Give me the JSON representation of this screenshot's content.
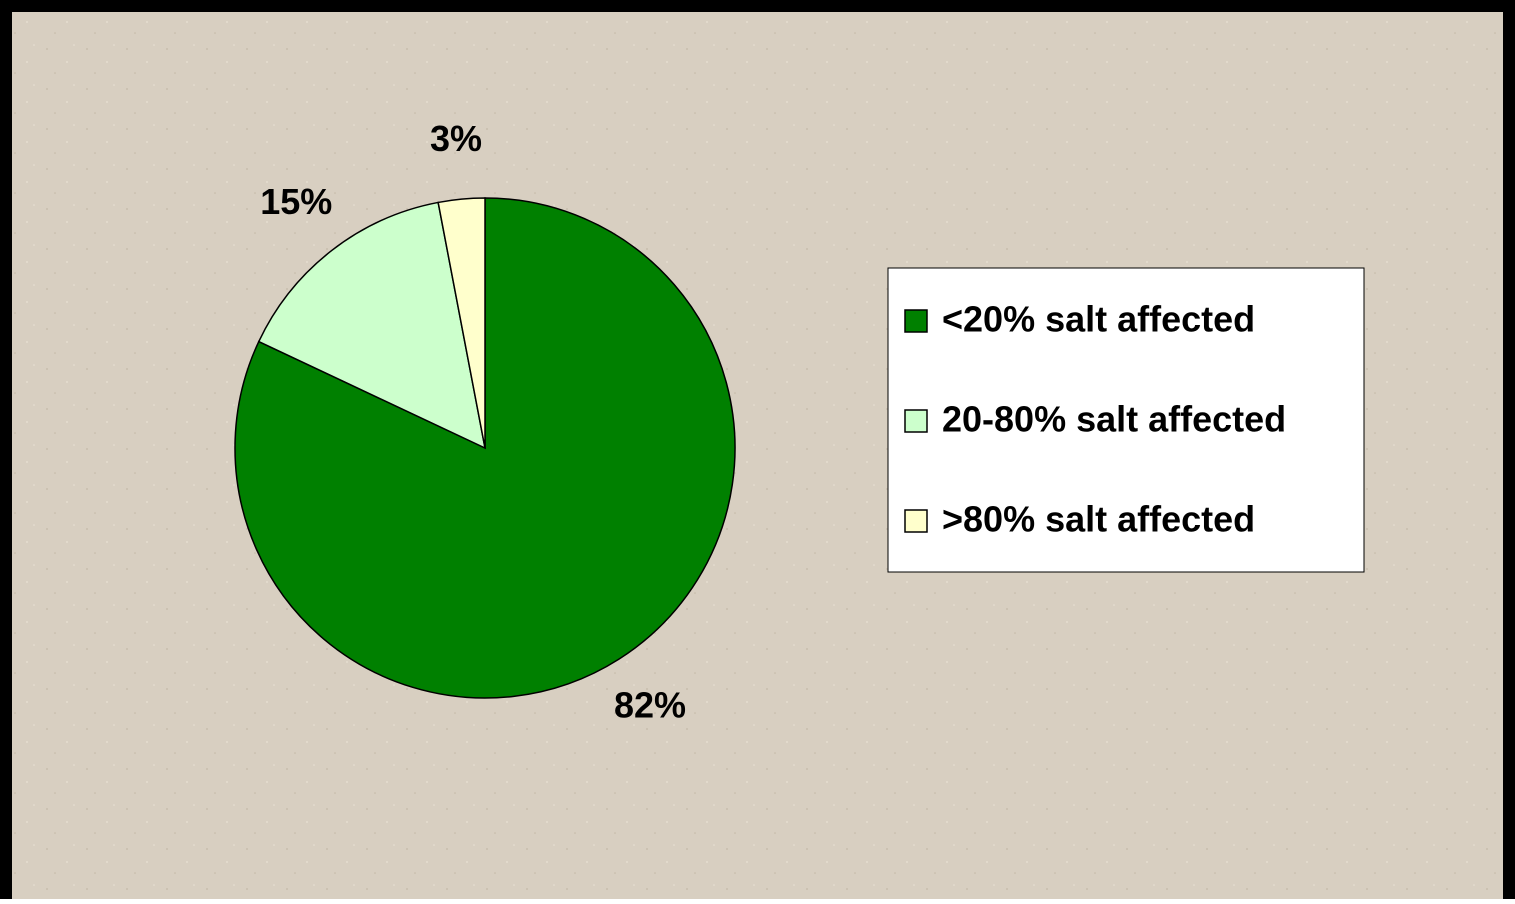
{
  "chart_data": {
    "type": "pie",
    "categories": [
      "<20% salt affected",
      "20-80% salt affected",
      ">80% salt affected"
    ],
    "values": [
      82,
      15,
      3
    ],
    "value_labels": [
      "82%",
      "15%",
      "3%"
    ],
    "colors": [
      "#008000",
      "#ccffcc",
      "#ffffcc"
    ],
    "legend": "right"
  }
}
